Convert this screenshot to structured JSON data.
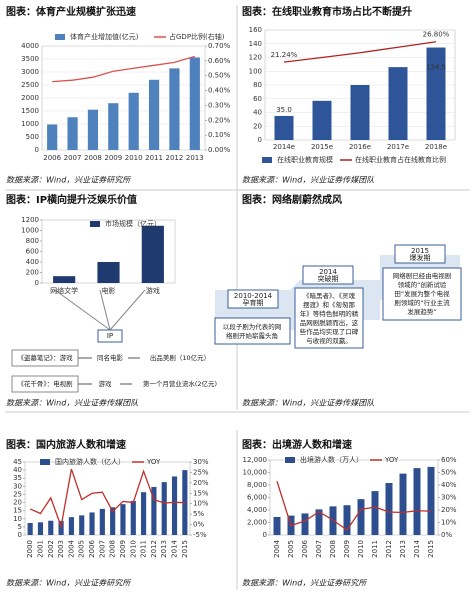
{
  "chart_data": [
    {
      "type": "combo",
      "title": "图表：体育产业规模扩张迅速",
      "categories": [
        "2006",
        "2007",
        "2008",
        "2009",
        "2010",
        "2011",
        "2012",
        "2013"
      ],
      "series": [
        {
          "name": "体育产业增加值(亿元)",
          "kind": "bar",
          "color": "#4f81bd",
          "values": [
            980,
            1260,
            1550,
            1800,
            2200,
            2700,
            3140,
            3560
          ]
        },
        {
          "name": "占GDP比例(右轴)",
          "kind": "line",
          "axis": "y2",
          "color": "#d9534f",
          "values": [
            0.46,
            0.47,
            0.49,
            0.53,
            0.55,
            0.57,
            0.59,
            0.63
          ]
        }
      ],
      "ylim": [
        0,
        4000
      ],
      "yticks": [
        0,
        500,
        1000,
        1500,
        2000,
        2500,
        3000,
        3500,
        4000
      ],
      "y2lim": [
        0,
        0.7
      ],
      "y2ticks": [
        {
          "value": 0,
          "label": "0.00%"
        },
        {
          "value": 0.1,
          "label": "0.10%"
        },
        {
          "value": 0.2,
          "label": "0.20%"
        },
        {
          "value": 0.3,
          "label": "0.30%"
        },
        {
          "value": 0.4,
          "label": "0.40%"
        },
        {
          "value": 0.5,
          "label": "0.50%"
        },
        {
          "value": 0.6,
          "label": "0.60%"
        },
        {
          "value": 0.7,
          "label": "0.70%"
        }
      ],
      "grid": true,
      "legend": "top",
      "source": "数据来源：Wind，兴业证券研究所"
    },
    {
      "type": "combo",
      "title": "图表：在线职业教育市场占比不断提升",
      "categories": [
        "2014e",
        "2015e",
        "2016e",
        "2017e",
        "2018e"
      ],
      "series": [
        {
          "name": "在线职业教育规模",
          "kind": "bar",
          "color": "#2e5597",
          "values": [
            35,
            57,
            80,
            106,
            134.5
          ],
          "value_labels": [
            "35.0",
            null,
            null,
            null,
            "134.5"
          ]
        },
        {
          "name": "在线职业教育占在线教育比例",
          "kind": "line",
          "axis": "y2",
          "color": "#b22222",
          "values": [
            21.24,
            22.5,
            23.8,
            25.3,
            26.8
          ],
          "value_labels": [
            "21.24%",
            null,
            null,
            null,
            "26.80%"
          ]
        }
      ],
      "ylim": [
        0,
        160
      ],
      "yticks": [
        0,
        20,
        40,
        60,
        80,
        100,
        120,
        140,
        160
      ],
      "y2lim": [
        0,
        30
      ],
      "grid": true,
      "legend": "bottom",
      "source": "数据来源：Wind，兴业证券传媒团队"
    },
    {
      "type": "combo",
      "title": "图表：IP横向提升泛娱乐价值",
      "categories": [
        "网络文学",
        "电影",
        "游戏"
      ],
      "series": [
        {
          "name": "市场规模（亿元）",
          "kind": "bar",
          "color": "#1f3a6e",
          "values": [
            130,
            400,
            1090
          ]
        }
      ],
      "ylim": [
        0,
        1200
      ],
      "yticks": [
        0,
        200,
        400,
        600,
        800,
        1000,
        1200
      ],
      "grid": false,
      "legend": "top",
      "source": "数据来源：Wind，兴业证券传媒团队"
    },
    {
      "type": "combo",
      "title": "图表：国内旅游人数和增速",
      "categories": [
        "2000",
        "2001",
        "2002",
        "2003",
        "2004",
        "2005",
        "2006",
        "2007",
        "2008",
        "2009",
        "2010",
        "2011",
        "2012",
        "2013",
        "2014",
        "2015"
      ],
      "series": [
        {
          "name": "国内旅游人数（亿人）",
          "kind": "bar",
          "color": "#2e4f8f",
          "values": [
            7.4,
            7.8,
            8.8,
            8.7,
            11.0,
            12.1,
            13.9,
            16.1,
            17.1,
            19.0,
            21.0,
            26.4,
            29.6,
            32.6,
            36.1,
            40.0
          ]
        },
        {
          "name": "YOY",
          "kind": "line",
          "axis": "y2",
          "color": "#c0302b",
          "values": [
            7.5,
            5.3,
            12.8,
            -0.9,
            26.6,
            12.0,
            15.0,
            15.5,
            6.3,
            11.1,
            10.6,
            25.6,
            12.0,
            10.3,
            10.7,
            10.5
          ]
        }
      ],
      "ylim": [
        0,
        45
      ],
      "yticks": [
        0,
        5,
        10,
        15,
        20,
        25,
        30,
        35,
        40,
        45
      ],
      "y2lim": [
        -5,
        30
      ],
      "y2ticks": [
        {
          "value": -5,
          "label": "-5%"
        },
        {
          "value": 0,
          "label": "0%"
        },
        {
          "value": 5,
          "label": "5%"
        },
        {
          "value": 10,
          "label": "10%"
        },
        {
          "value": 15,
          "label": "15%"
        },
        {
          "value": 20,
          "label": "20%"
        },
        {
          "value": 25,
          "label": "25%"
        },
        {
          "value": 30,
          "label": "30%"
        }
      ],
      "grid": false,
      "legend": "top",
      "source": "数据来源：Wind，兴业证券研究所"
    },
    {
      "type": "combo",
      "title": "图表：出境游人数和增速",
      "categories": [
        "2004",
        "2005",
        "2006",
        "2007",
        "2008",
        "2009",
        "2010",
        "2011",
        "2012",
        "2013",
        "2014",
        "2015"
      ],
      "series": [
        {
          "name": "出境游人数（万人）",
          "kind": "bar",
          "color": "#2e4f8f",
          "values": [
            2885,
            3103,
            3452,
            4095,
            4584,
            4766,
            5739,
            7025,
            8318,
            9819,
            10700,
            10900
          ]
        },
        {
          "name": "YOY",
          "kind": "line",
          "axis": "y2",
          "color": "#c0302b",
          "values": [
            43,
            7.5,
            11.3,
            18.6,
            11.9,
            4.0,
            20.4,
            22.4,
            18.4,
            18.0,
            19.5,
            19.0
          ]
        }
      ],
      "ylim": [
        0,
        12000
      ],
      "yticks": [
        0,
        {
          "value": 2000,
          "label": "2,000"
        },
        {
          "value": 4000,
          "label": "4,000"
        },
        {
          "value": 6000,
          "label": "6,000"
        },
        {
          "value": 8000,
          "label": "8,000"
        },
        {
          "value": 10000,
          "label": "10,000"
        },
        {
          "value": 12000,
          "label": "12,000"
        }
      ],
      "y2lim": [
        0,
        60
      ],
      "y2ticks": [
        {
          "value": 0,
          "label": "0%"
        },
        {
          "value": 10,
          "label": "10%"
        },
        {
          "value": 20,
          "label": "20%"
        },
        {
          "value": 30,
          "label": "30%"
        },
        {
          "value": 40,
          "label": "40%"
        },
        {
          "value": 50,
          "label": "50%"
        },
        {
          "value": 60,
          "label": "60%"
        }
      ],
      "grid": false,
      "legend": "top",
      "source": "数据来源：Wind，兴业证券研究所"
    }
  ],
  "ip_diagram": {
    "center": "IP",
    "rows": [
      [
        "《盗墓笔记》：游戏",
        "同名电影",
        "出品美剧（10亿元）"
      ],
      [
        "《花千骨》：电视剧",
        "游戏",
        "第一个月营业流水(2亿元)"
      ]
    ]
  },
  "timeline": {
    "title": "图表：网络剧蔚然成风",
    "stages": [
      {
        "period": "2010-2014",
        "name": "孕育期",
        "text": [
          "以段子剧为代表的网",
          "络剧开始崭露头角"
        ]
      },
      {
        "period": "2014",
        "name": "突破期",
        "text": [
          "《暗黑者》、《灵魂",
          "摆渡》和《匆匆那",
          "年》等特色鲜明的精",
          "品网剧脱颖而出，这",
          "些作品均实现了口碑",
          "与收视的双赢。"
        ]
      },
      {
        "period": "2015",
        "name": "爆发期",
        "text": [
          "网络剧已经由电视剧",
          "领域的“创新试验",
          "田”发展为整个电视",
          "剧领域的“行业主流",
          "发展趋势”"
        ]
      }
    ],
    "source": "数据来源：Wind，兴业证券传媒团队"
  }
}
